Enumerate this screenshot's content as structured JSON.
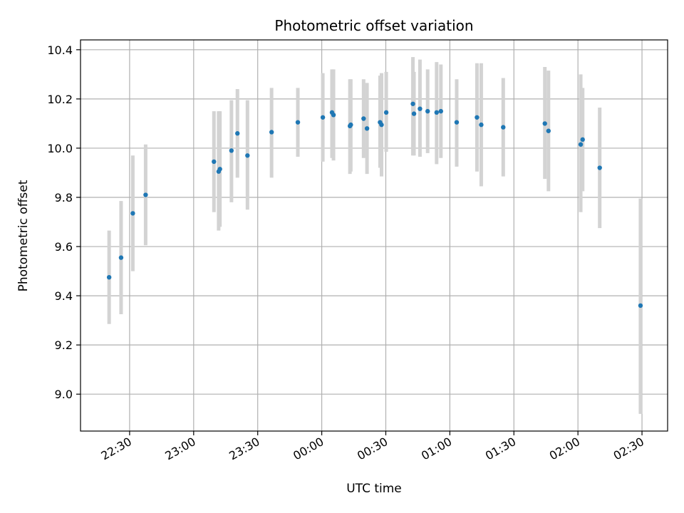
{
  "chart_data": {
    "type": "scatter",
    "title": "Photometric offset variation",
    "xlabel": "UTC time",
    "ylabel": "Photometric offset",
    "grid": true,
    "xlim": [
      "22:07",
      "02:42"
    ],
    "ylim": [
      8.85,
      10.44
    ],
    "x_ticks": [
      "22:30",
      "23:00",
      "23:30",
      "00:00",
      "00:30",
      "01:00",
      "01:30",
      "02:00",
      "02:30"
    ],
    "y_ticks": [
      "9.0",
      "9.2",
      "9.4",
      "9.6",
      "9.8",
      "10.0",
      "10.2",
      "10.4"
    ],
    "point_color": "#1f77b4",
    "errorbar_color": "#d3d3d3",
    "series": [
      {
        "points": [
          {
            "t": "22:20.4",
            "y": 9.475,
            "lo": 9.285,
            "hi": 9.665
          },
          {
            "t": "22:26.0",
            "y": 9.555,
            "lo": 9.325,
            "hi": 9.785
          },
          {
            "t": "22:31.5",
            "y": 9.735,
            "lo": 9.5,
            "hi": 9.97
          },
          {
            "t": "22:37.5",
            "y": 9.81,
            "lo": 9.605,
            "hi": 10.015
          },
          {
            "t": "23:09.5",
            "y": 9.945,
            "lo": 9.74,
            "hi": 10.15
          },
          {
            "t": "23:11.7",
            "y": 9.905,
            "lo": 9.665,
            "hi": 10.15
          },
          {
            "t": "23:12.3",
            "y": 9.915,
            "lo": 9.68,
            "hi": 10.15
          },
          {
            "t": "23:17.7",
            "y": 9.99,
            "lo": 9.78,
            "hi": 10.195
          },
          {
            "t": "23:20.5",
            "y": 10.06,
            "lo": 9.88,
            "hi": 10.24
          },
          {
            "t": "23:25.2",
            "y": 9.97,
            "lo": 9.75,
            "hi": 10.195
          },
          {
            "t": "23:36.5",
            "y": 10.065,
            "lo": 9.88,
            "hi": 10.245
          },
          {
            "t": "23:48.8",
            "y": 10.105,
            "lo": 9.965,
            "hi": 10.245
          },
          {
            "t": "00:00.5",
            "y": 10.125,
            "lo": 9.945,
            "hi": 10.305
          },
          {
            "t": "00:04.8",
            "y": 10.145,
            "lo": 9.96,
            "hi": 10.32
          },
          {
            "t": "00:05.5",
            "y": 10.135,
            "lo": 9.95,
            "hi": 10.32
          },
          {
            "t": "00:13.2",
            "y": 10.09,
            "lo": 9.895,
            "hi": 10.28
          },
          {
            "t": "00:13.6",
            "y": 10.095,
            "lo": 9.905,
            "hi": 10.28
          },
          {
            "t": "00:19.6",
            "y": 10.12,
            "lo": 9.96,
            "hi": 10.28
          },
          {
            "t": "00:21.2",
            "y": 10.08,
            "lo": 9.895,
            "hi": 10.265
          },
          {
            "t": "00:27.3",
            "y": 10.105,
            "lo": 9.92,
            "hi": 10.295
          },
          {
            "t": "00:28.0",
            "y": 10.095,
            "lo": 9.885,
            "hi": 10.305
          },
          {
            "t": "00:30.2",
            "y": 10.145,
            "lo": 9.985,
            "hi": 10.31
          },
          {
            "t": "00:42.7",
            "y": 10.18,
            "lo": 9.97,
            "hi": 10.37
          },
          {
            "t": "00:43.2",
            "y": 10.14,
            "lo": 9.97,
            "hi": 10.31
          },
          {
            "t": "00:46.0",
            "y": 10.16,
            "lo": 9.965,
            "hi": 10.36
          },
          {
            "t": "00:49.6",
            "y": 10.15,
            "lo": 9.98,
            "hi": 10.32
          },
          {
            "t": "00:53.8",
            "y": 10.145,
            "lo": 9.935,
            "hi": 10.35
          },
          {
            "t": "00:55.8",
            "y": 10.15,
            "lo": 9.96,
            "hi": 10.34
          },
          {
            "t": "01:03.2",
            "y": 10.105,
            "lo": 9.925,
            "hi": 10.28
          },
          {
            "t": "01:12.7",
            "y": 10.125,
            "lo": 9.905,
            "hi": 10.345
          },
          {
            "t": "01:14.7",
            "y": 10.095,
            "lo": 9.845,
            "hi": 10.345
          },
          {
            "t": "01:25.0",
            "y": 10.085,
            "lo": 9.885,
            "hi": 10.285
          },
          {
            "t": "01:44.5",
            "y": 10.1,
            "lo": 9.875,
            "hi": 10.33
          },
          {
            "t": "01:46.2",
            "y": 10.07,
            "lo": 9.825,
            "hi": 10.315
          },
          {
            "t": "02:01.3",
            "y": 10.015,
            "lo": 9.74,
            "hi": 10.3
          },
          {
            "t": "02:02.2",
            "y": 10.035,
            "lo": 9.825,
            "hi": 10.245
          },
          {
            "t": "02:10.2",
            "y": 9.92,
            "lo": 9.675,
            "hi": 10.165
          },
          {
            "t": "02:29.3",
            "y": 9.36,
            "lo": 8.92,
            "hi": 9.795
          }
        ]
      }
    ]
  }
}
